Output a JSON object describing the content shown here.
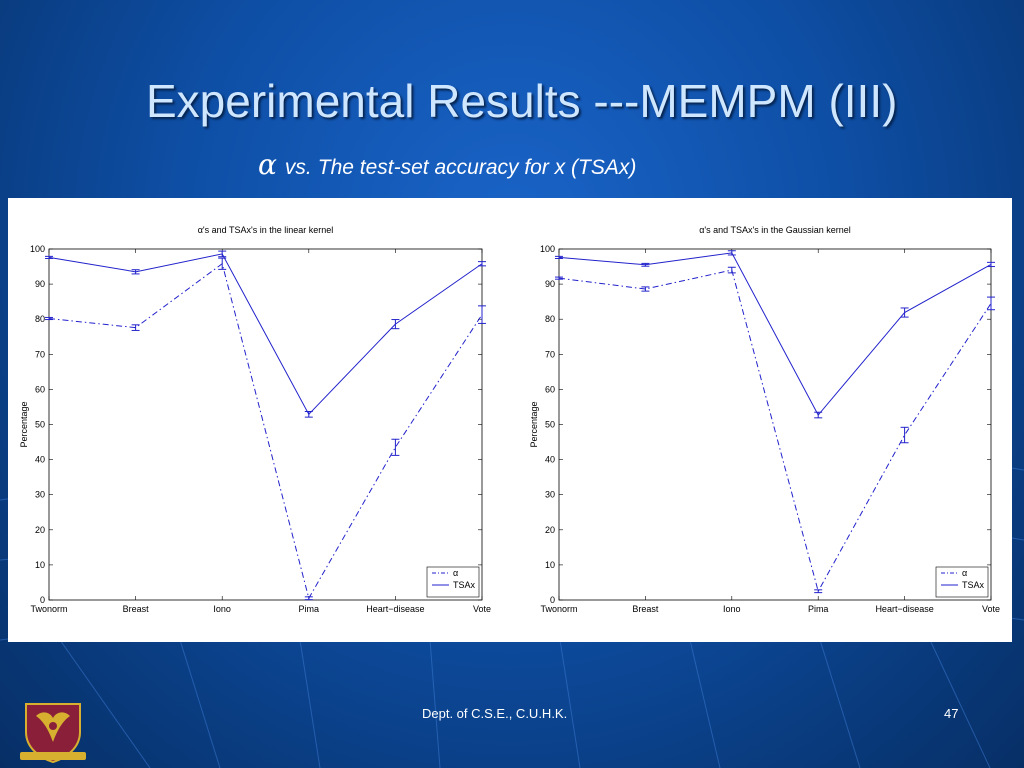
{
  "slide": {
    "title": "Experimental Results ---MEMPM (III)",
    "subtitle_symbol": "α",
    "subtitle_vs": "vs.",
    "subtitle_text": "The test-set accuracy for x (TSAx)",
    "footer": "Dept. of C.S.E., C.U.H.K.",
    "page_number": "47",
    "logo_icon": "cuhk-crest-icon"
  },
  "colors": {
    "background": "#0e4fa6",
    "title": "#cfe6ff",
    "series": "#2222cc"
  },
  "chart_data": [
    {
      "type": "line",
      "title": "α's and TSAx's in the linear kernel",
      "ylabel": "Percentage",
      "xlabel": "",
      "categories": [
        "Twonorm",
        "Breast",
        "Iono",
        "Pima",
        "Heart−disease",
        "Vote"
      ],
      "ylim": [
        0,
        100
      ],
      "yticks": [
        0,
        10,
        20,
        30,
        40,
        50,
        60,
        70,
        80,
        90,
        100
      ],
      "grid": false,
      "legend": "bottom-right",
      "series": [
        {
          "name": "α",
          "style": "dash-dot",
          "values": [
            80.2,
            77.6,
            95.8,
            0.5,
            43.5,
            81.3
          ],
          "errors": [
            0.3,
            0.8,
            1.6,
            0.4,
            2.3,
            2.5
          ]
        },
        {
          "name": "TSAx",
          "style": "solid",
          "values": [
            97.6,
            93.5,
            98.6,
            52.9,
            78.6,
            95.8
          ],
          "errors": [
            0.3,
            0.6,
            0.8,
            0.8,
            1.3,
            0.6
          ]
        }
      ]
    },
    {
      "type": "line",
      "title": "α's and TSAx's in the Gaussian kernel",
      "ylabel": "Percentage",
      "xlabel": "",
      "categories": [
        "Twonorm",
        "Breast",
        "Iono",
        "Pima",
        "Heart−disease",
        "Vote"
      ],
      "ylim": [
        0,
        100
      ],
      "yticks": [
        0,
        10,
        20,
        30,
        40,
        50,
        60,
        70,
        80,
        90,
        100
      ],
      "grid": false,
      "legend": "bottom-right",
      "series": [
        {
          "name": "α",
          "style": "dash-dot",
          "values": [
            91.7,
            88.6,
            94.0,
            2.5,
            47.0,
            84.5
          ],
          "errors": [
            0.3,
            0.6,
            0.8,
            0.4,
            2.2,
            1.8
          ]
        },
        {
          "name": "TSAx",
          "style": "solid",
          "values": [
            97.6,
            95.5,
            98.9,
            52.7,
            81.9,
            95.6
          ],
          "errors": [
            0.3,
            0.4,
            0.6,
            0.8,
            1.3,
            0.6
          ]
        }
      ]
    }
  ]
}
